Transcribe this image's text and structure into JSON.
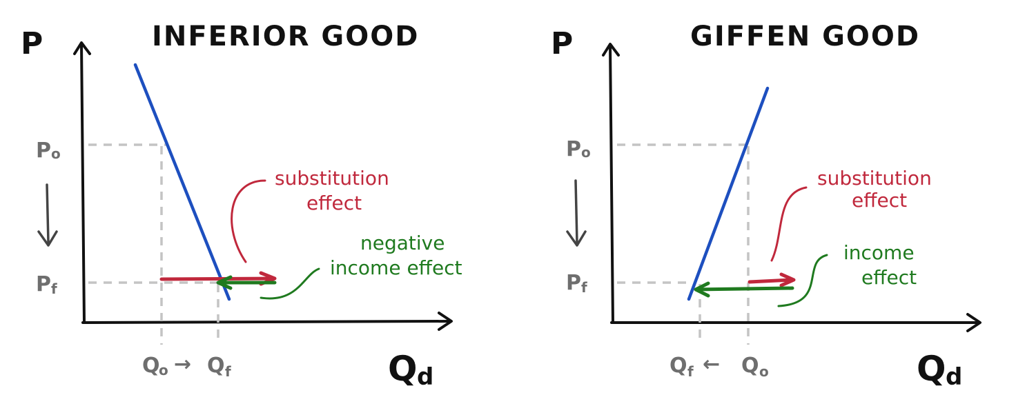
{
  "panels": [
    {
      "title": "INFERIOR GOOD",
      "p_axis_label": "P",
      "q_axis_label": "Q",
      "q_axis_sub": "d",
      "p_initial": "P",
      "p_initial_sub": "o",
      "p_final": "P",
      "p_final_sub": "f",
      "q_initial": "Q",
      "q_initial_sub": "o",
      "q_final": "Q",
      "q_final_sub": "f",
      "q_arrow": "→",
      "substitution_line1": "substitution",
      "substitution_line2": "effect",
      "income_line1": "negative",
      "income_line2": "income effect"
    },
    {
      "title": "GIFFEN GOOD",
      "p_axis_label": "P",
      "q_axis_label": "Q",
      "q_axis_sub": "d",
      "p_initial": "P",
      "p_initial_sub": "o",
      "p_final": "P",
      "p_final_sub": "f",
      "q_final": "Q",
      "q_final_sub": "f",
      "q_initial": "Q",
      "q_initial_sub": "o",
      "q_arrow": "←",
      "substitution_line1": "substitution",
      "substitution_line2": "effect",
      "income_line1": "income",
      "income_line2": "effect"
    }
  ],
  "colors": {
    "curve": "#1d4fbf",
    "substitution": "#c0283c",
    "income": "#1f7a1f",
    "guides": "#c4c4c4",
    "axes": "#111111"
  }
}
